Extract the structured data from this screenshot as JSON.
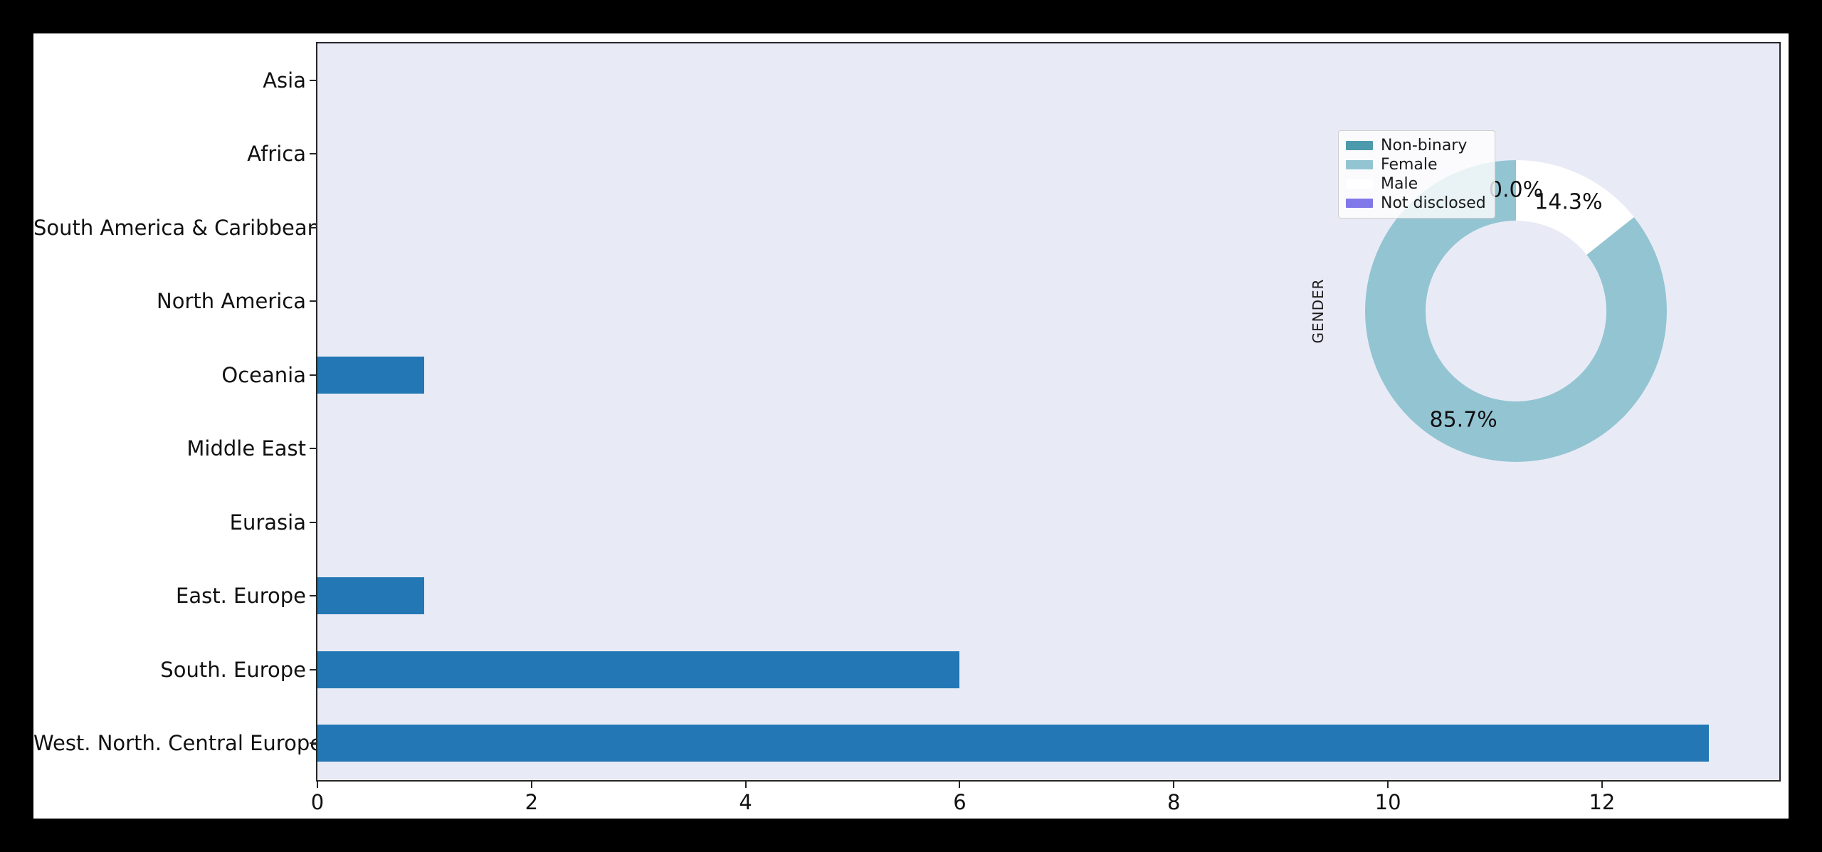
{
  "figure": {
    "outer_background": "#000000",
    "canvas_background": "#ffffff",
    "axes_background": "#e8ebf6",
    "axes_frame_color": "#262626"
  },
  "chart_data": [
    {
      "type": "bar",
      "orientation": "horizontal",
      "title": "",
      "xlabel": "",
      "ylabel": "",
      "categories": [
        "Asia",
        "Africa",
        "South America & Caribbean",
        "North America",
        "Oceania",
        "Middle East",
        "Eurasia",
        "East. Europe",
        "South. Europe",
        "West. North. Central Europe"
      ],
      "values": [
        0,
        0,
        0,
        0,
        1,
        0,
        0,
        1,
        6,
        13
      ],
      "bar_color": "#2277b4",
      "xticks": [
        "0",
        "2",
        "4",
        "6",
        "8",
        "10",
        "12"
      ],
      "xtick_values": [
        0,
        2,
        4,
        6,
        8,
        10,
        12
      ],
      "xlim": [
        0,
        13.66
      ],
      "grid": false,
      "legend_position": "none"
    },
    {
      "type": "pie",
      "donut": true,
      "title": "",
      "ylabel": "GENDER",
      "legend_position": "upper left",
      "slices": [
        {
          "label": "Non-binary",
          "value": 0.0,
          "pct_label": "0.0%",
          "color": "#4d9aad",
          "label_visible": true
        },
        {
          "label": "Female",
          "value": 85.7,
          "pct_label": "85.7%",
          "color": "#93c4d2",
          "label_visible": true
        },
        {
          "label": "Male",
          "value": 14.3,
          "pct_label": "14.3%",
          "color": "#ffffff",
          "label_visible": true
        },
        {
          "label": "Not disclosed",
          "value": 0.0,
          "pct_label": "",
          "color": "#8077e8",
          "label_visible": false
        }
      ]
    }
  ]
}
